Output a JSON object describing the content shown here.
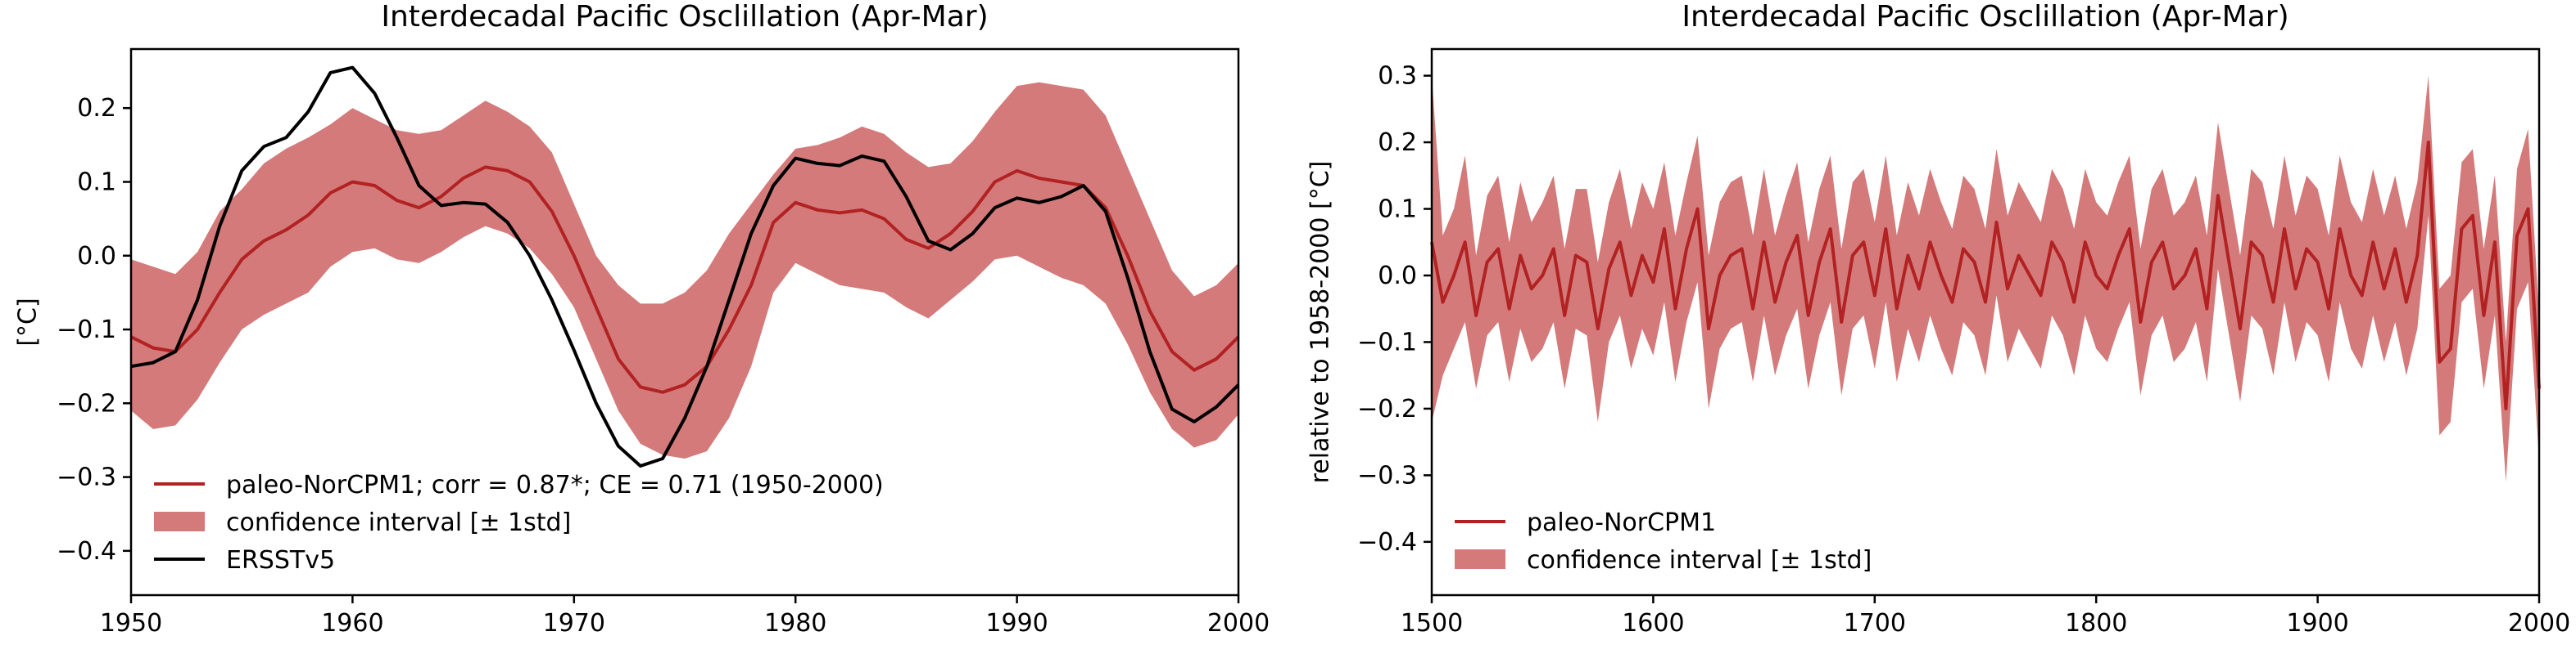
{
  "colors": {
    "band": "#d47a7a",
    "model": "#b22222",
    "obs": "#000000"
  },
  "chart_data": [
    {
      "type": "line",
      "title": "Interdecadal Pacific Osclillation (Apr-Mar)",
      "xlabel": "",
      "ylabel": "[°C]",
      "xlim": [
        1950,
        2000
      ],
      "ylim": [
        -0.46,
        0.28
      ],
      "xticks": [
        1950,
        1960,
        1970,
        1980,
        1990,
        2000
      ],
      "xtick_labels": [
        "1950",
        "1960",
        "1970",
        "1980",
        "1990",
        "2000"
      ],
      "yticks": [
        -0.4,
        -0.3,
        -0.2,
        -0.1,
        0.0,
        0.1,
        0.2
      ],
      "ytick_labels": [
        "−0.4",
        "−0.3",
        "−0.2",
        "−0.1",
        "0.0",
        "0.1",
        "0.2"
      ],
      "grid": false,
      "legend_position": "lower-left",
      "legend": [
        {
          "label": "paleo-NorCPM1; corr = 0.87*; CE = 0.71 (1950-2000)",
          "kind": "line",
          "color": "#b22222"
        },
        {
          "label": "confidence interval [± 1std]",
          "kind": "patch",
          "color": "#d47a7a"
        },
        {
          "label": "ERSSTv5",
          "kind": "line",
          "color": "#000000"
        }
      ],
      "x": [
        1950,
        1951,
        1952,
        1953,
        1954,
        1955,
        1956,
        1957,
        1958,
        1959,
        1960,
        1961,
        1962,
        1963,
        1964,
        1965,
        1966,
        1967,
        1968,
        1969,
        1970,
        1971,
        1972,
        1973,
        1974,
        1975,
        1976,
        1977,
        1978,
        1979,
        1980,
        1981,
        1982,
        1983,
        1984,
        1985,
        1986,
        1987,
        1988,
        1989,
        1990,
        1991,
        1992,
        1993,
        1994,
        1995,
        1996,
        1997,
        1998,
        1999,
        2000
      ],
      "series": [
        {
          "name": "paleo-NorCPM1; corr = 0.87*; CE = 0.71 (1950-2000)",
          "kind": "line",
          "color": "#b22222",
          "values": [
            -0.11,
            -0.125,
            -0.13,
            -0.1,
            -0.05,
            -0.005,
            0.02,
            0.035,
            0.055,
            0.085,
            0.1,
            0.095,
            0.075,
            0.065,
            0.08,
            0.105,
            0.12,
            0.115,
            0.1,
            0.06,
            0.0,
            -0.07,
            -0.14,
            -0.178,
            -0.185,
            -0.175,
            -0.15,
            -0.1,
            -0.04,
            0.045,
            0.072,
            0.062,
            0.058,
            0.062,
            0.05,
            0.022,
            0.01,
            0.03,
            0.06,
            0.1,
            0.115,
            0.105,
            0.1,
            0.095,
            0.065,
            0.0,
            -0.075,
            -0.13,
            -0.155,
            -0.14,
            -0.11
          ]
        },
        {
          "name": "ERSSTv5",
          "kind": "line",
          "color": "#000000",
          "values": [
            -0.15,
            -0.145,
            -0.13,
            -0.06,
            0.04,
            0.115,
            0.148,
            0.16,
            0.195,
            0.248,
            0.255,
            0.22,
            0.16,
            0.095,
            0.068,
            0.072,
            0.07,
            0.045,
            0.0,
            -0.06,
            -0.128,
            -0.2,
            -0.258,
            -0.285,
            -0.275,
            -0.22,
            -0.15,
            -0.06,
            0.03,
            0.095,
            0.132,
            0.125,
            0.122,
            0.135,
            0.128,
            0.08,
            0.02,
            0.008,
            0.03,
            0.065,
            0.078,
            0.072,
            0.08,
            0.095,
            0.06,
            -0.03,
            -0.13,
            -0.208,
            -0.225,
            -0.205,
            -0.175
          ]
        },
        {
          "name": "confidence interval [± 1std]",
          "kind": "band",
          "color": "#d47a7a",
          "upper": [
            -0.005,
            -0.015,
            -0.025,
            0.005,
            0.06,
            0.09,
            0.125,
            0.145,
            0.16,
            0.178,
            0.2,
            0.185,
            0.17,
            0.165,
            0.17,
            0.19,
            0.21,
            0.195,
            0.175,
            0.14,
            0.07,
            0.0,
            -0.04,
            -0.065,
            -0.065,
            -0.05,
            -0.02,
            0.03,
            0.07,
            0.11,
            0.145,
            0.15,
            0.16,
            0.175,
            0.165,
            0.14,
            0.12,
            0.125,
            0.155,
            0.195,
            0.23,
            0.235,
            0.23,
            0.225,
            0.19,
            0.12,
            0.05,
            -0.02,
            -0.055,
            -0.04,
            -0.01
          ],
          "lower": [
            -0.21,
            -0.235,
            -0.23,
            -0.195,
            -0.145,
            -0.1,
            -0.08,
            -0.065,
            -0.05,
            -0.015,
            0.005,
            0.01,
            -0.005,
            -0.01,
            0.005,
            0.025,
            0.04,
            0.03,
            0.01,
            -0.025,
            -0.07,
            -0.14,
            -0.21,
            -0.255,
            -0.27,
            -0.275,
            -0.265,
            -0.22,
            -0.15,
            -0.05,
            -0.01,
            -0.025,
            -0.04,
            -0.045,
            -0.05,
            -0.07,
            -0.085,
            -0.06,
            -0.035,
            -0.005,
            0.0,
            -0.015,
            -0.03,
            -0.04,
            -0.065,
            -0.12,
            -0.185,
            -0.235,
            -0.26,
            -0.25,
            -0.215
          ]
        }
      ]
    },
    {
      "type": "line",
      "title": "Interdecadal Pacific Osclillation (Apr-Mar)",
      "xlabel": "",
      "ylabel": "relative to 1958-2000 [°C]",
      "xlim": [
        1500,
        2000
      ],
      "ylim": [
        -0.48,
        0.34
      ],
      "xticks": [
        1500,
        1600,
        1700,
        1800,
        1900,
        2000
      ],
      "xtick_labels": [
        "1500",
        "1600",
        "1700",
        "1800",
        "1900",
        "2000"
      ],
      "yticks": [
        -0.4,
        -0.3,
        -0.2,
        -0.1,
        0.0,
        0.1,
        0.2,
        0.3
      ],
      "ytick_labels": [
        "−0.4",
        "−0.3",
        "−0.2",
        "−0.1",
        "0.0",
        "0.1",
        "0.2",
        "0.3"
      ],
      "grid": false,
      "legend_position": "lower-left",
      "legend": [
        {
          "label": "paleo-NorCPM1",
          "kind": "line",
          "color": "#b22222"
        },
        {
          "label": "confidence interval [± 1std]",
          "kind": "patch",
          "color": "#d47a7a"
        }
      ],
      "x": [
        1500,
        1505,
        1510,
        1515,
        1520,
        1525,
        1530,
        1535,
        1540,
        1545,
        1550,
        1555,
        1560,
        1565,
        1570,
        1575,
        1580,
        1585,
        1590,
        1595,
        1600,
        1605,
        1610,
        1615,
        1620,
        1625,
        1630,
        1635,
        1640,
        1645,
        1650,
        1655,
        1660,
        1665,
        1670,
        1675,
        1680,
        1685,
        1690,
        1695,
        1700,
        1705,
        1710,
        1715,
        1720,
        1725,
        1730,
        1735,
        1740,
        1745,
        1750,
        1755,
        1760,
        1765,
        1770,
        1775,
        1780,
        1785,
        1790,
        1795,
        1800,
        1805,
        1810,
        1815,
        1820,
        1825,
        1830,
        1835,
        1840,
        1845,
        1850,
        1855,
        1860,
        1865,
        1870,
        1875,
        1880,
        1885,
        1890,
        1895,
        1900,
        1905,
        1910,
        1915,
        1920,
        1925,
        1930,
        1935,
        1940,
        1945,
        1950,
        1955,
        1960,
        1965,
        1970,
        1975,
        1980,
        1985,
        1990,
        1995,
        2000
      ],
      "series": [
        {
          "name": "paleo-NorCPM1",
          "kind": "line",
          "color": "#b22222",
          "values": [
            0.05,
            -0.04,
            0.0,
            0.05,
            -0.06,
            0.02,
            0.04,
            -0.05,
            0.03,
            -0.02,
            0.0,
            0.04,
            -0.06,
            0.03,
            0.02,
            -0.08,
            0.01,
            0.05,
            -0.03,
            0.03,
            -0.01,
            0.07,
            -0.05,
            0.04,
            0.1,
            -0.08,
            0.0,
            0.03,
            0.04,
            -0.05,
            0.05,
            -0.04,
            0.02,
            0.06,
            -0.06,
            0.02,
            0.07,
            -0.07,
            0.03,
            0.05,
            -0.03,
            0.07,
            -0.05,
            0.03,
            -0.02,
            0.05,
            0.0,
            -0.04,
            0.04,
            0.02,
            -0.04,
            0.08,
            -0.02,
            0.03,
            0.0,
            -0.03,
            0.05,
            0.02,
            -0.04,
            0.05,
            0.0,
            -0.02,
            0.03,
            0.07,
            -0.07,
            0.02,
            0.05,
            -0.02,
            0.0,
            0.04,
            -0.05,
            0.12,
            0.02,
            -0.08,
            0.05,
            0.03,
            -0.04,
            0.07,
            -0.02,
            0.04,
            0.02,
            -0.05,
            0.07,
            0.0,
            -0.03,
            0.05,
            -0.02,
            0.04,
            -0.04,
            0.03,
            0.2,
            -0.13,
            -0.11,
            0.07,
            0.09,
            -0.06,
            0.05,
            -0.2,
            0.06,
            0.1,
            -0.17
          ]
        },
        {
          "name": "confidence interval [± 1std]",
          "kind": "band",
          "color": "#d47a7a",
          "upper": [
            0.3,
            0.06,
            0.1,
            0.18,
            0.03,
            0.12,
            0.15,
            0.05,
            0.14,
            0.08,
            0.11,
            0.15,
            0.04,
            0.13,
            0.13,
            0.02,
            0.11,
            0.16,
            0.07,
            0.14,
            0.1,
            0.17,
            0.06,
            0.14,
            0.21,
            0.03,
            0.11,
            0.14,
            0.15,
            0.06,
            0.16,
            0.06,
            0.12,
            0.17,
            0.05,
            0.13,
            0.18,
            0.04,
            0.14,
            0.16,
            0.08,
            0.18,
            0.06,
            0.14,
            0.09,
            0.16,
            0.11,
            0.07,
            0.15,
            0.13,
            0.07,
            0.19,
            0.09,
            0.14,
            0.11,
            0.08,
            0.16,
            0.13,
            0.07,
            0.16,
            0.11,
            0.09,
            0.14,
            0.18,
            0.04,
            0.13,
            0.16,
            0.09,
            0.11,
            0.15,
            0.06,
            0.23,
            0.13,
            0.03,
            0.16,
            0.14,
            0.07,
            0.18,
            0.09,
            0.15,
            0.13,
            0.06,
            0.18,
            0.11,
            0.08,
            0.16,
            0.09,
            0.15,
            0.07,
            0.14,
            0.3,
            -0.02,
            0.0,
            0.17,
            0.19,
            0.04,
            0.15,
            -0.1,
            0.16,
            0.22,
            -0.06
          ],
          "lower": [
            -0.22,
            -0.15,
            -0.11,
            -0.07,
            -0.17,
            -0.09,
            -0.07,
            -0.16,
            -0.08,
            -0.13,
            -0.11,
            -0.07,
            -0.17,
            -0.08,
            -0.09,
            -0.22,
            -0.1,
            -0.06,
            -0.14,
            -0.08,
            -0.12,
            -0.04,
            -0.16,
            -0.07,
            -0.01,
            -0.2,
            -0.11,
            -0.08,
            -0.07,
            -0.16,
            -0.06,
            -0.15,
            -0.09,
            -0.05,
            -0.17,
            -0.09,
            -0.04,
            -0.18,
            -0.08,
            -0.06,
            -0.14,
            -0.04,
            -0.16,
            -0.08,
            -0.13,
            -0.06,
            -0.11,
            -0.15,
            -0.07,
            -0.09,
            -0.15,
            -0.03,
            -0.13,
            -0.08,
            -0.11,
            -0.14,
            -0.06,
            -0.09,
            -0.15,
            -0.06,
            -0.11,
            -0.13,
            -0.08,
            -0.04,
            -0.18,
            -0.09,
            -0.06,
            -0.13,
            -0.11,
            -0.07,
            -0.16,
            0.01,
            -0.09,
            -0.19,
            -0.06,
            -0.08,
            -0.15,
            -0.04,
            -0.13,
            -0.07,
            -0.09,
            -0.16,
            -0.04,
            -0.11,
            -0.14,
            -0.06,
            -0.13,
            -0.07,
            -0.15,
            -0.08,
            0.09,
            -0.24,
            -0.22,
            -0.04,
            -0.02,
            -0.17,
            -0.06,
            -0.31,
            -0.05,
            -0.01,
            -0.28
          ]
        }
      ]
    }
  ]
}
